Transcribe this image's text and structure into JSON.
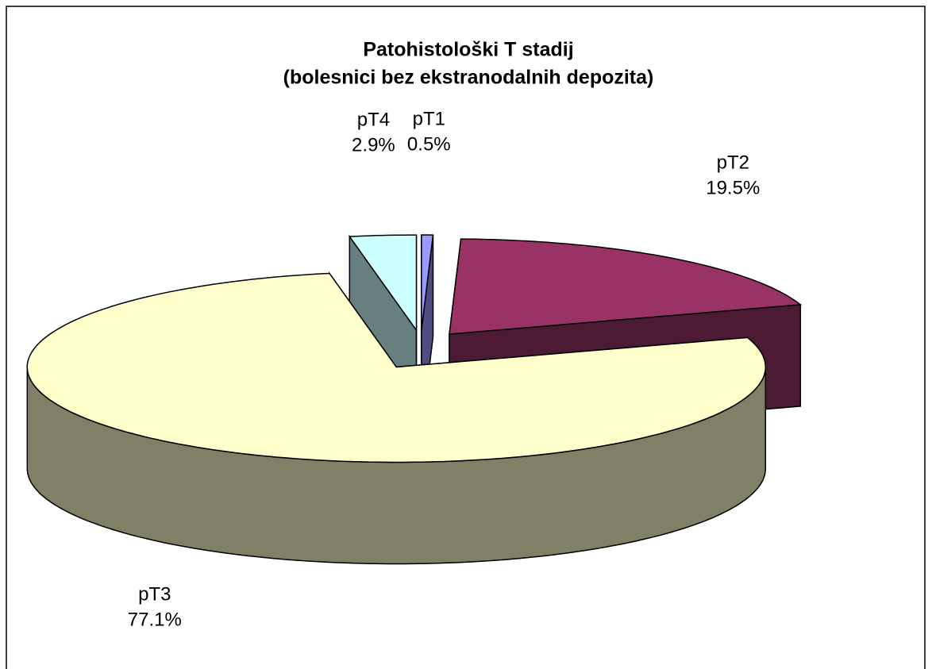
{
  "chart_data": {
    "type": "pie3d",
    "title": "Patohistološki T stadij",
    "subtitle": "(bolesnici bez ekstranodalnih depozita)",
    "categories": [
      "pT1",
      "pT2",
      "pT3",
      "pT4"
    ],
    "values": [
      0.5,
      19.5,
      77.1,
      2.9
    ],
    "value_labels": [
      "0.5%",
      "19.5%",
      "77.1%",
      "2.9%"
    ],
    "colors": [
      "#9999ff",
      "#993366",
      "#ffffcc",
      "#ccffff"
    ]
  }
}
